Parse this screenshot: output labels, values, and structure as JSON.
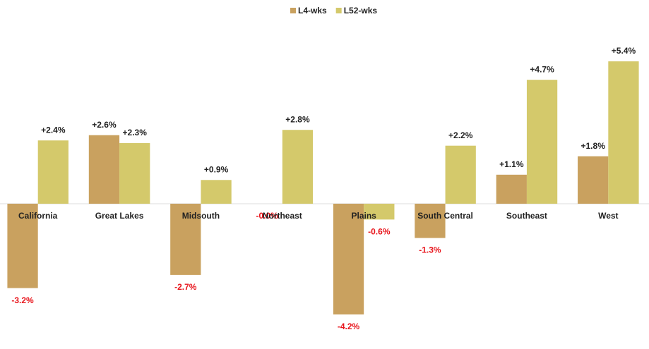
{
  "chart_data": {
    "type": "bar",
    "categories": [
      "California",
      "Great Lakes",
      "Midsouth",
      "Northeast",
      "Plains",
      "South Central",
      "Southeast",
      "West"
    ],
    "series": [
      {
        "name": "L4-wks",
        "color": "#c9a15f",
        "values": [
          -3.2,
          2.6,
          -2.7,
          -0.0,
          -4.2,
          -1.3,
          1.1,
          1.8
        ],
        "value_labels": [
          "-3.2%",
          "+2.6%",
          "-2.7%",
          "-0.0%",
          "-4.2%",
          "-1.3%",
          "+1.1%",
          "+1.8%"
        ]
      },
      {
        "name": "L52-wks",
        "color": "#d4c96b",
        "values": [
          2.4,
          2.3,
          0.9,
          2.8,
          -0.6,
          2.2,
          4.7,
          5.4
        ],
        "value_labels": [
          "+2.4%",
          "+2.3%",
          "+0.9%",
          "+2.8%",
          "-0.6%",
          "+2.2%",
          "+4.7%",
          "+5.4%"
        ]
      }
    ],
    "legend": "top"
  }
}
